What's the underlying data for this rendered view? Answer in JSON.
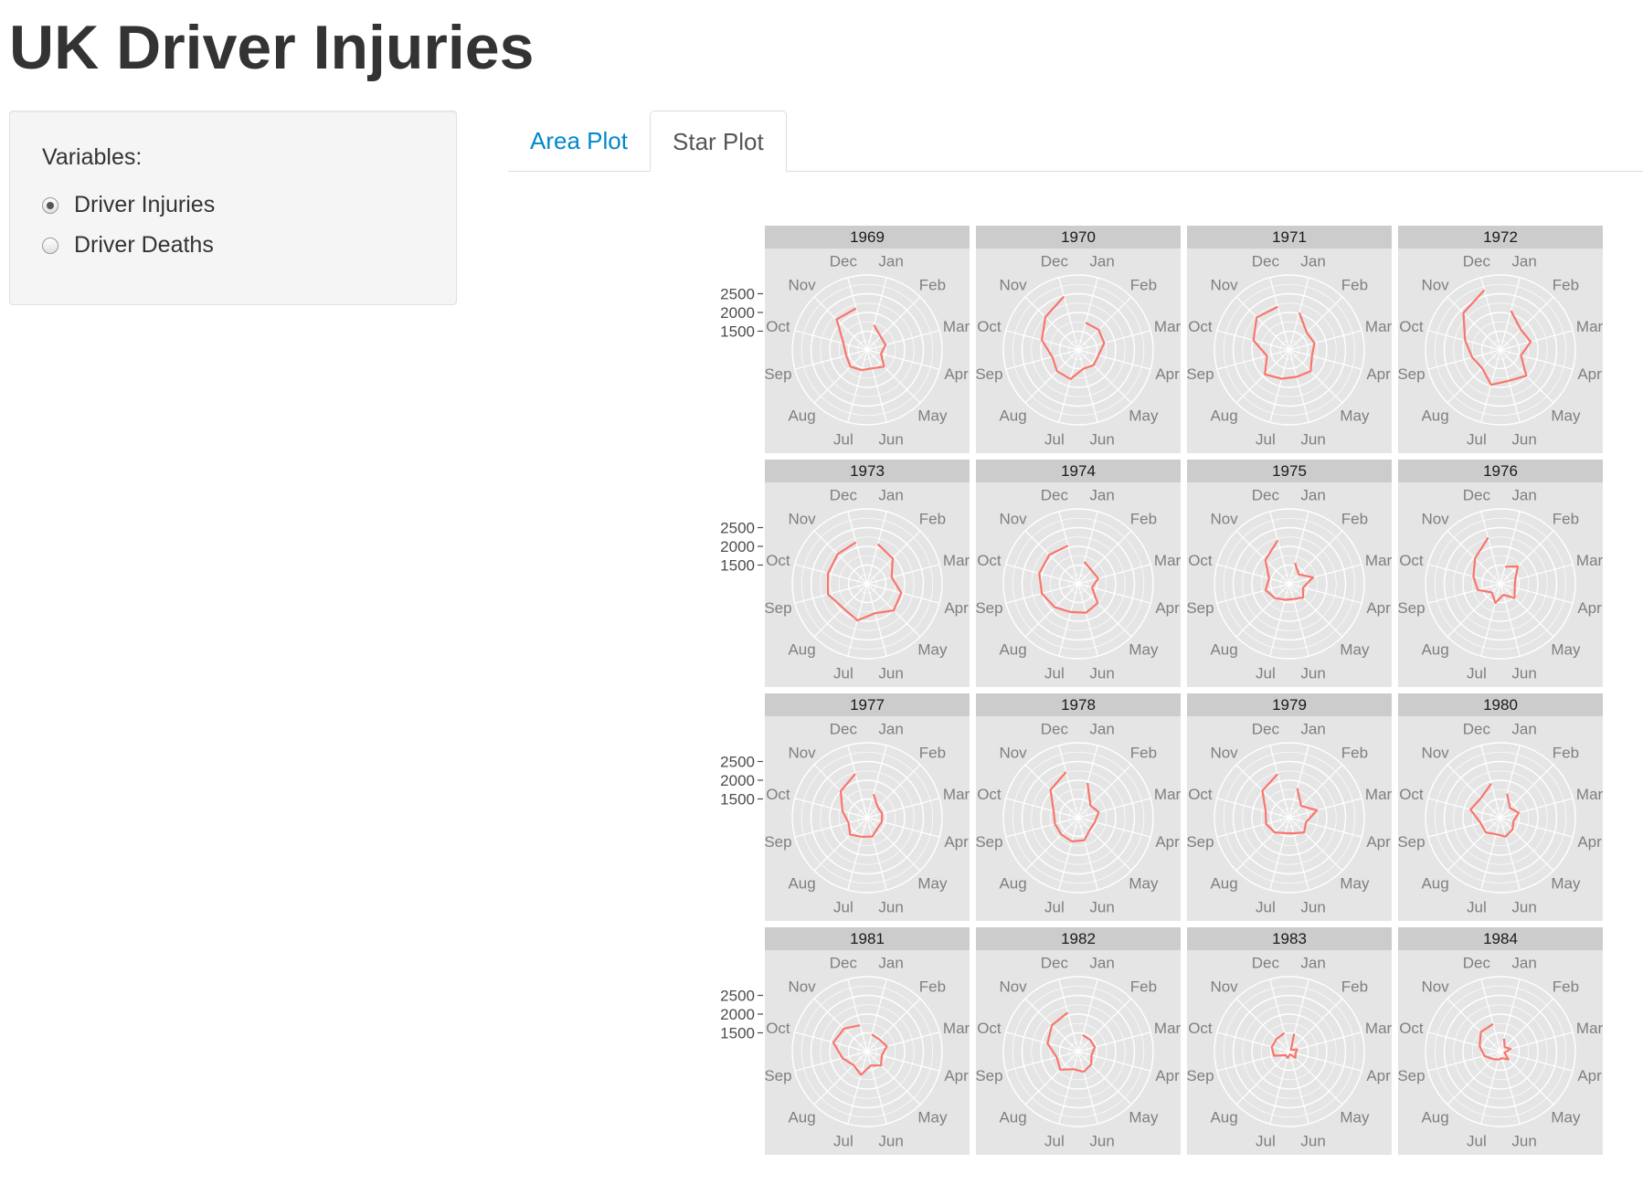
{
  "page": {
    "title": "UK Driver Injuries"
  },
  "sidebar": {
    "label": "Variables:",
    "options": [
      {
        "label": "Driver Injuries",
        "checked": true
      },
      {
        "label": "Driver Deaths",
        "checked": false
      }
    ]
  },
  "tabs": [
    {
      "label": "Area Plot",
      "active": false
    },
    {
      "label": "Star Plot",
      "active": true
    }
  ],
  "colors": {
    "line": "#f8766d",
    "panel": "#e5e5e5",
    "strip": "#cccccc",
    "link": "#0088cc"
  },
  "chart_data": {
    "type": "star",
    "coord": "polar",
    "months": [
      "Jan",
      "Feb",
      "Mar",
      "Apr",
      "May",
      "Jun",
      "Jul",
      "Aug",
      "Sep",
      "Oct",
      "Nov",
      "Dec"
    ],
    "y_ticks": [
      1500,
      2000,
      2500
    ],
    "ylim": [
      1000,
      3000
    ],
    "series": [
      {
        "name": "1969",
        "values": [
          1687,
          1508,
          1507,
          1385,
          1632,
          1511,
          1559,
          1630,
          1579,
          1653,
          2152,
          2148
        ]
      },
      {
        "name": "1970",
        "values": [
          1752,
          1765,
          1717,
          1558,
          1575,
          1520,
          1805,
          1800,
          1719,
          2008,
          2242,
          2478
        ]
      },
      {
        "name": "1971",
        "values": [
          2030,
          1655,
          1693,
          1623,
          1805,
          1746,
          1795,
          1926,
          1619,
          1992,
          2233,
          2192
        ]
      },
      {
        "name": "1972",
        "values": [
          2080,
          1768,
          1835,
          1569,
          1976,
          1853,
          1965,
          1689,
          1778,
          1976,
          2397,
          2654
        ]
      },
      {
        "name": "1973",
        "values": [
          2097,
          1963,
          1677,
          1941,
          2003,
          1813,
          2012,
          1912,
          2084,
          2080,
          2118,
          2150
        ]
      },
      {
        "name": "1974",
        "values": [
          1608,
          1503,
          1548,
          1382,
          1731,
          1798,
          1779,
          1887,
          2004,
          2077,
          2092,
          2051
        ]
      },
      {
        "name": "1975",
        "values": [
          1577,
          1356,
          1652,
          1382,
          1519,
          1421,
          1442,
          1543,
          1656,
          1561,
          1905,
          2199
        ]
      },
      {
        "name": "1976",
        "values": [
          1473,
          1655,
          1407,
          1395,
          1530,
          1309,
          1526,
          1327,
          1627,
          1748,
          1958,
          2274
        ]
      },
      {
        "name": "1977",
        "values": [
          1648,
          1401,
          1411,
          1403,
          1394,
          1520,
          1528,
          1643,
          1515,
          1685,
          2000,
          2215
        ]
      },
      {
        "name": "1978",
        "values": [
          1956,
          1462,
          1563,
          1459,
          1446,
          1622,
          1657,
          1638,
          1643,
          1683,
          2050,
          2262
        ]
      },
      {
        "name": "1979",
        "values": [
          1813,
          1445,
          1762,
          1461,
          1556,
          1431,
          1427,
          1554,
          1645,
          1653,
          2016,
          2207
        ]
      },
      {
        "name": "1980",
        "values": [
          1665,
          1361,
          1506,
          1360,
          1453,
          1522,
          1460,
          1552,
          1548,
          1827,
          1737,
          1941
        ]
      },
      {
        "name": "1981",
        "values": [
          1474,
          1458,
          1542,
          1404,
          1522,
          1385,
          1641,
          1510,
          1681,
          1938,
          1868,
          1726
        ]
      },
      {
        "name": "1982",
        "values": [
          1456,
          1445,
          1456,
          1365,
          1487,
          1558,
          1488,
          1684,
          1594,
          1850,
          1998,
          2079
        ]
      },
      {
        "name": "1983",
        "values": [
          1494,
          1057,
          1218,
          1168,
          1236,
          1076,
          1174,
          1139,
          1427,
          1487,
          1483,
          1513
        ]
      },
      {
        "name": "1984",
        "values": [
          1357,
          1165,
          1282,
          1110,
          1297,
          1185,
          1222,
          1284,
          1444,
          1575,
          1737,
          1763
        ]
      }
    ]
  }
}
